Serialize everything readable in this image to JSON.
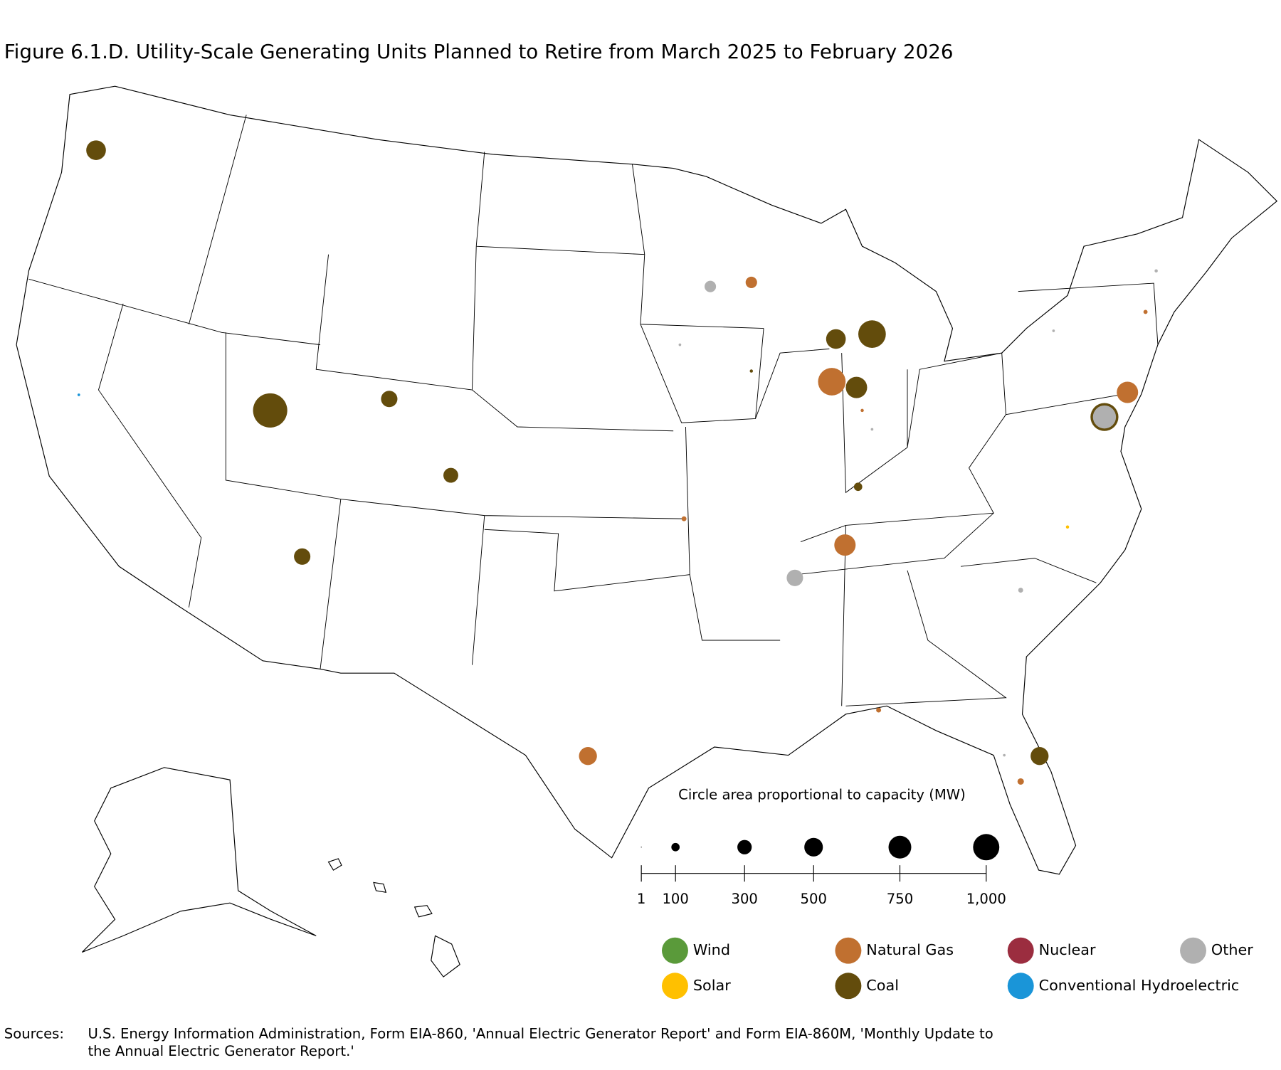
{
  "chart_data": {
    "type": "bubble-map",
    "title": "Figure 6.1.D. Utility-Scale Generating Units Planned to Retire from March 2025 to February 2026",
    "size_legend": {
      "title": "Circle area proportional to capacity (MW)",
      "xlim": [
        0,
        1000
      ],
      "ticks": [
        1,
        100,
        300,
        500,
        750,
        {
          "value": 1000,
          "label": "1,000"
        }
      ]
    },
    "series": [
      {
        "name": "Wind",
        "color": "#5a9a3a",
        "values": []
      },
      {
        "name": "Natural Gas",
        "color": "#c07030",
        "values": [
          190,
          1100,
          660,
          660,
          470,
          60,
          35,
          25,
          15,
          35
        ]
      },
      {
        "name": "Nuclear",
        "color": "#9b2d3f",
        "values": []
      },
      {
        "name": "Other",
        "color": "#b0b0b0",
        "values": [
          190,
          390,
          770,
          35,
          15,
          10,
          10,
          10,
          10
        ]
      },
      {
        "name": "Solar",
        "color": "#ffc000",
        "values": [
          15
        ]
      },
      {
        "name": "Coal",
        "color": "#634c0c",
        "values": [
          560,
          1700,
          390,
          320,
          390,
          560,
          1100,
          660,
          100,
          470,
          1130,
          15
        ]
      },
      {
        "name": "Conventional Hydroelectric",
        "color": "#1a95d8",
        "values": [
          10
        ]
      }
    ],
    "source_label": "Sources:",
    "source": "U.S. Energy Information Administration, Form EIA-860, 'Annual Electric Generator Report' and Form EIA-860M, 'Monthly Update to the Annual Electric Generator Report.'"
  }
}
